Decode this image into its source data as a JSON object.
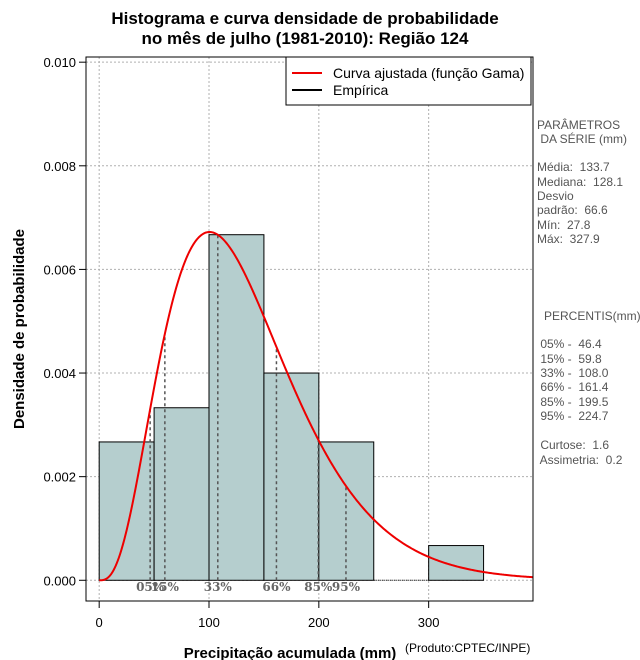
{
  "title_line1": "Histograma e curva densidade de probabilidade",
  "title_line2": "no mês de julho (1981-2010): Região 124",
  "credit": "(Produto:CPTEC/INPE)",
  "colors": {
    "bar_fill": "#b5cece",
    "curve": "#ee0000",
    "empirical": "#000000",
    "grid": "#b0b0b0",
    "percentile_line": "#555555"
  },
  "legend": {
    "curve_label": "Curva ajustada (função Gama)",
    "empirical_label": "Empírica"
  },
  "stats": {
    "header1": "PARÂMETROS",
    "header2": " DA SÉRIE (mm)",
    "media": "Média:  133.7",
    "mediana": "Mediana:  128.1",
    "desvio1": "Desvio",
    "desvio2": "padrão:  66.6",
    "min": "Mín:  27.8",
    "max": "Máx:  327.9"
  },
  "percentis": {
    "header": "PERCENTIS(mm)",
    "p05": " 05% -  46.4",
    "p15": " 15% -  59.8",
    "p33": " 33% -  108.0",
    "p66": " 66% -  161.4",
    "p85": " 85% -  199.5",
    "p95": " 95% -  224.7",
    "curtose": " Curtose:  1.6",
    "assimetria": " Assimetria:  0.2"
  },
  "chart_data": {
    "type": "histogram",
    "xlabel": "Precipitação acumulada (mm)",
    "ylabel": "Densidade de probabilidade",
    "xlim": [
      -12,
      395
    ],
    "ylim": [
      -0.0004,
      0.0101
    ],
    "xticks": [
      0,
      100,
      200,
      300
    ],
    "yticks": [
      0.0,
      0.002,
      0.004,
      0.006,
      0.008,
      0.01
    ],
    "ytick_labels": [
      "0.000",
      "0.002",
      "0.004",
      "0.006",
      "0.008",
      "0.010"
    ],
    "bins": [
      {
        "x0": 0,
        "x1": 50,
        "density": 0.00267
      },
      {
        "x0": 50,
        "x1": 100,
        "density": 0.00333
      },
      {
        "x0": 100,
        "x1": 150,
        "density": 0.00667
      },
      {
        "x0": 150,
        "x1": 200,
        "density": 0.004
      },
      {
        "x0": 200,
        "x1": 250,
        "density": 0.00267
      },
      {
        "x0": 250,
        "x1": 300,
        "density": 0.0
      },
      {
        "x0": 300,
        "x1": 350,
        "density": 0.00067
      }
    ],
    "gamma_fit": {
      "shape": 4.03,
      "scale": 33.17
    },
    "percentiles": [
      {
        "label": "05%",
        "value": 46.4
      },
      {
        "label": "15%",
        "value": 59.8
      },
      {
        "label": "33%",
        "value": 108.0
      },
      {
        "label": "66%",
        "value": 161.4
      },
      {
        "label": "85%",
        "value": 199.5
      },
      {
        "label": "95%",
        "value": 224.7
      }
    ]
  }
}
